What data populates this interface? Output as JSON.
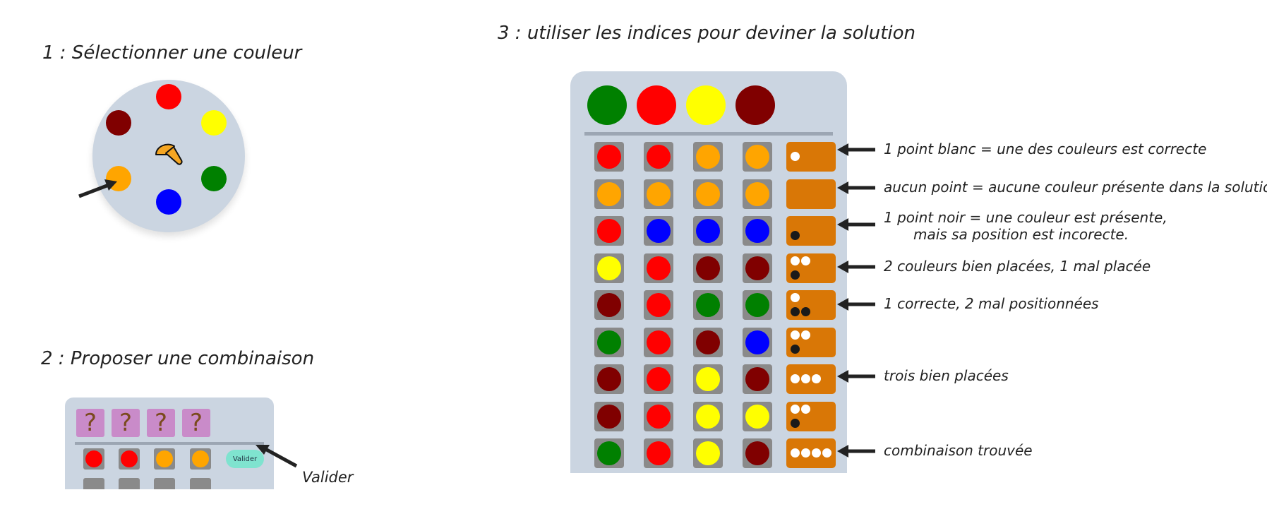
{
  "step1": {
    "title": "1 : Sélectionner une couleur",
    "colors": [
      {
        "name": "red",
        "hex": "#ff0000"
      },
      {
        "name": "yellow",
        "hex": "#ffff00"
      },
      {
        "name": "green",
        "hex": "#008000"
      },
      {
        "name": "blue",
        "hex": "#0000ff"
      },
      {
        "name": "orange",
        "hex": "#ffa500"
      },
      {
        "name": "maroon",
        "hex": "#800000"
      }
    ],
    "selected_color": "orange",
    "center_icon": "mushroom-icon"
  },
  "step2": {
    "title": "2 : Proposer une combinaison",
    "hidden_symbol": "?",
    "guess": [
      "red",
      "red",
      "orange",
      "orange"
    ],
    "valider_button": "Valider",
    "valider_label": "Valider"
  },
  "step3": {
    "title": "3 : utiliser les indices pour deviner la solution",
    "solution": [
      "green",
      "red",
      "yellow",
      "maroon"
    ],
    "rows": [
      {
        "pegs": [
          "red",
          "red",
          "orange",
          "orange"
        ],
        "white": 1,
        "black": 0,
        "annotation": "1 point blanc = une des couleurs est correcte"
      },
      {
        "pegs": [
          "orange",
          "orange",
          "orange",
          "orange"
        ],
        "white": 0,
        "black": 0,
        "annotation": "aucun point = aucune couleur présente dans la solution"
      },
      {
        "pegs": [
          "red",
          "blue",
          "blue",
          "blue"
        ],
        "white": 0,
        "black": 1,
        "annotation": "1 point noir = une couleur est présente,",
        "annotation2": "mais sa position est incorecte."
      },
      {
        "pegs": [
          "yellow",
          "red",
          "maroon",
          "maroon"
        ],
        "white": 2,
        "black": 1,
        "annotation": "2 couleurs bien placées, 1 mal placée"
      },
      {
        "pegs": [
          "maroon",
          "red",
          "green",
          "green"
        ],
        "white": 1,
        "black": 2,
        "annotation": "1 correcte, 2 mal positionnées"
      },
      {
        "pegs": [
          "green",
          "red",
          "maroon",
          "blue"
        ],
        "white": 2,
        "black": 1,
        "annotation": ""
      },
      {
        "pegs": [
          "maroon",
          "red",
          "yellow",
          "maroon"
        ],
        "white": 3,
        "black": 0,
        "annotation": "trois bien placées"
      },
      {
        "pegs": [
          "maroon",
          "red",
          "yellow",
          "yellow"
        ],
        "white": 2,
        "black": 1,
        "annotation": ""
      },
      {
        "pegs": [
          "green",
          "red",
          "yellow",
          "maroon"
        ],
        "white": 4,
        "black": 0,
        "annotation": "combinaison trouvée"
      }
    ]
  },
  "palette": {
    "red": "#ff0000",
    "yellow": "#ffff00",
    "green": "#008000",
    "blue": "#0000ff",
    "orange": "#ffa500",
    "maroon": "#800000",
    "board": "#cbd5e1",
    "hint_box": "#d97706",
    "hidden_box": "#c98bc9",
    "valider_button": "#7fe3cf"
  }
}
